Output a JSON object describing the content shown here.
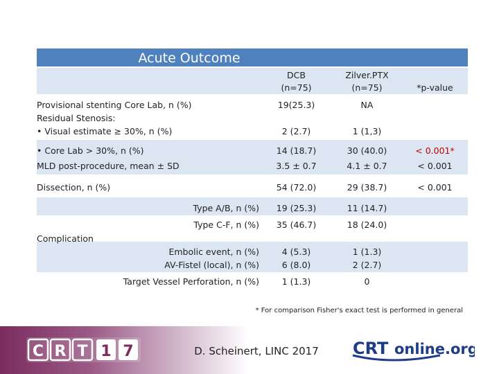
{
  "title": "Acute Outcome",
  "columns": {
    "dcb_line1": "DCB",
    "dcb_line2": "(n=75)",
    "zil_line1": "Zilver.PTX",
    "zil_line2": "(n=75)",
    "pvalue": "*p-value"
  },
  "rows": [
    {
      "label": "Provisional stenting Core Lab, n (%)",
      "dcb": "19(25.3)",
      "zil": "NA",
      "p": ""
    },
    {
      "label": "Residual Stenosis:",
      "dcb": "",
      "zil": "",
      "p": ""
    },
    {
      "label": "•   Visual estimate ≥ 30%, n (%)",
      "dcb": "2 (2.7)",
      "zil": "1 (1,3)",
      "p": ""
    },
    {
      "label": "•   Core Lab > 30%, n (%)",
      "dcb": "14 (18.7)",
      "zil": "30 (40.0)",
      "p": "< 0.001*"
    },
    {
      "label": "MLD post-procedure, mean ± SD",
      "dcb": "3.5 ± 0.7",
      "zil": "4.1 ± 0.7",
      "p": "< 0.001"
    },
    {
      "label": "Dissection, n (%)",
      "dcb": "54 (72.0)",
      "zil": "29 (38.7)",
      "p": "< 0.001"
    },
    {
      "label": "Type A/B, n (%)",
      "dcb": "19 (25.3)",
      "zil": "11 (14.7)",
      "p": ""
    },
    {
      "label": "Type C-F, n (%)",
      "dcb": "35 (46.7)",
      "zil": "18 (24.0)",
      "p": ""
    },
    {
      "label": "Complication",
      "dcb": "",
      "zil": "",
      "p": ""
    },
    {
      "label": "Embolic event, n (%)",
      "dcb": "4 (5.3)",
      "zil": "1 (1.3)",
      "p": ""
    },
    {
      "label": "AV-Fistel (local), n (%)",
      "dcb": "6 (8.0)",
      "zil": "2 (2.7)",
      "p": ""
    },
    {
      "label": "Target Vessel Perforation, n (%)",
      "dcb": "1 (1.3)",
      "zil": "0",
      "p": ""
    }
  ],
  "footnote": "* For comparison Fisher's exact test is performed in general",
  "footer": {
    "logo_text": "CRT17",
    "author": "D. Scheinert, LINC 2017",
    "site_logo_text": "CRTonline.org",
    "accent_color": "#7a2d5e"
  }
}
